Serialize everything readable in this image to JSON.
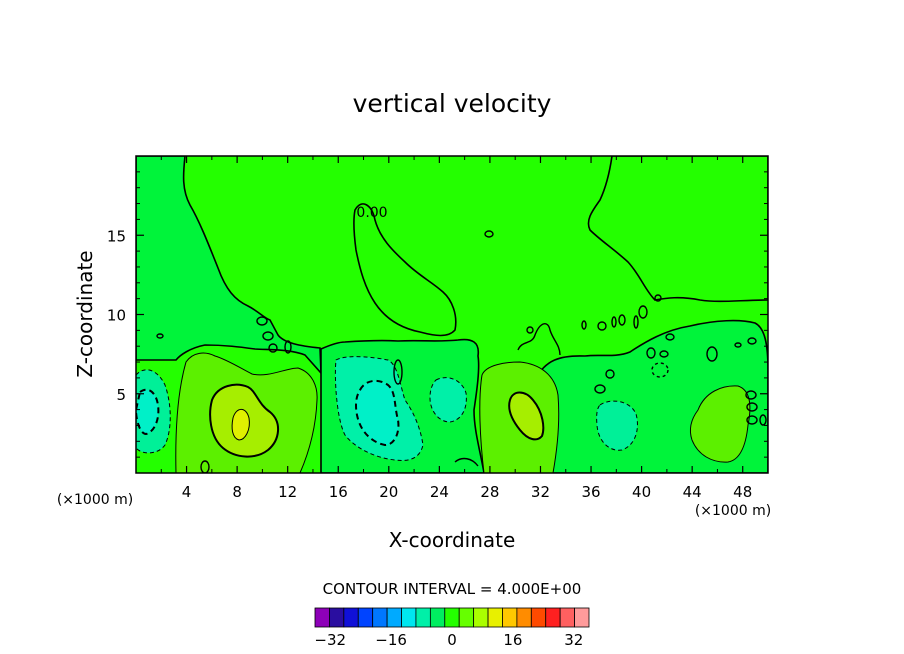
{
  "chart_data": {
    "type": "contour",
    "title": "vertical velocity",
    "xlabel": "X-coordinate",
    "ylabel": "Z-coordinate",
    "x_unit": "(×1000 m)",
    "x_unit_right": "(×1000 m)",
    "xlim": [
      0,
      50
    ],
    "ylim": [
      0,
      20
    ],
    "x_ticks": [
      4,
      8,
      12,
      16,
      20,
      24,
      28,
      32,
      36,
      40,
      44,
      48
    ],
    "y_ticks": [
      5,
      10,
      15
    ],
    "contour_interval_label": "CONTOUR INTERVAL = 4.000E+00",
    "contour_labels": [
      {
        "text": "0.00",
        "x": 18.5,
        "y": 16.3
      }
    ],
    "colorbar": {
      "levels": [
        -36,
        -32,
        -28,
        -24,
        -20,
        -16,
        -12,
        -8,
        -4,
        0,
        4,
        8,
        12,
        16,
        20,
        24,
        28,
        32,
        36
      ],
      "tick_labels": [
        -32,
        -16,
        0,
        16,
        32
      ],
      "colors": [
        "#8d00b8",
        "#2a0ea0",
        "#1010d8",
        "#0044ff",
        "#0077ff",
        "#00aaff",
        "#00e6f0",
        "#00f0a8",
        "#00ee60",
        "#24ff00",
        "#66ff00",
        "#aaff00",
        "#e8f000",
        "#ffc800",
        "#ff8c00",
        "#ff4a00",
        "#ff2020",
        "#ff6060",
        "#ff9b9b"
      ]
    }
  }
}
